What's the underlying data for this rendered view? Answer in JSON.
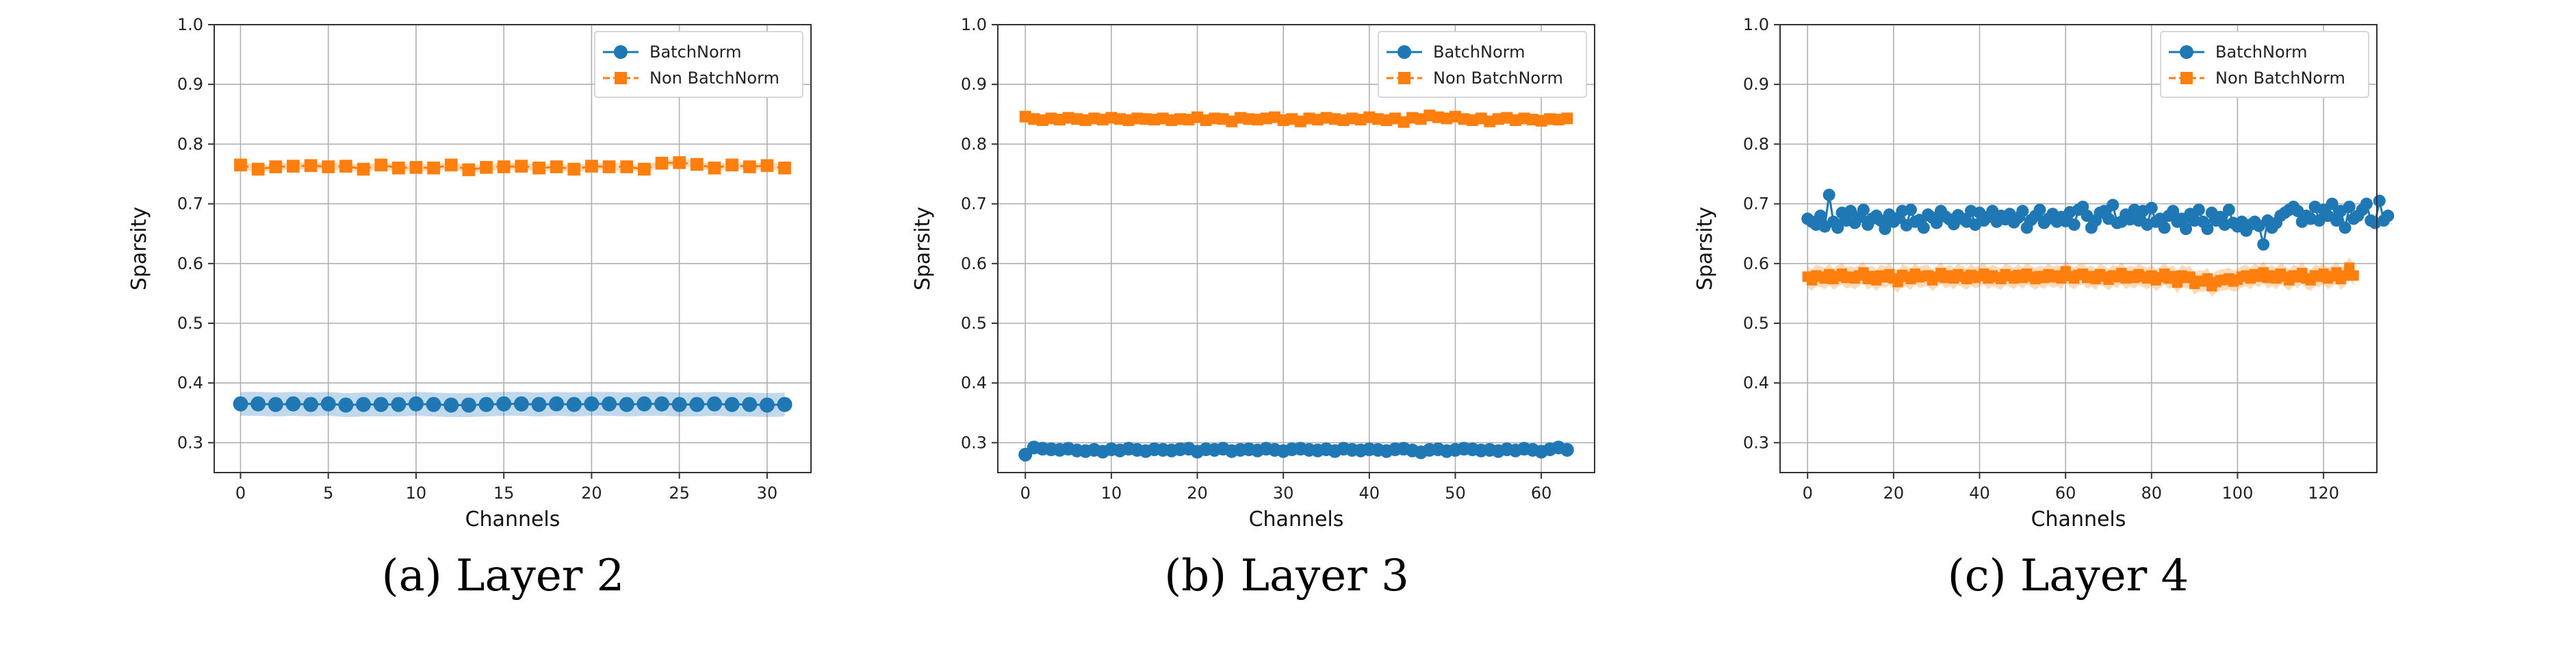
{
  "chart_data": [
    {
      "type": "line",
      "caption": "(a) Layer 2",
      "xlabel": "Channels",
      "ylabel": "Sparsity",
      "xlim": [
        -1.5,
        32.5
      ],
      "ylim": [
        0.25,
        1.0
      ],
      "xticks": [
        0,
        5,
        10,
        15,
        20,
        25,
        30
      ],
      "yticks": [
        0.3,
        0.4,
        0.5,
        0.6,
        0.7,
        0.8,
        0.9,
        1.0
      ],
      "grid": true,
      "legend": "top-right",
      "series": [
        {
          "name": "BatchNorm",
          "color": "#1f77b4",
          "marker": "circle",
          "band": 0.02,
          "values": [
            0.365,
            0.365,
            0.364,
            0.365,
            0.364,
            0.365,
            0.363,
            0.364,
            0.364,
            0.364,
            0.365,
            0.364,
            0.363,
            0.363,
            0.364,
            0.365,
            0.365,
            0.364,
            0.365,
            0.364,
            0.365,
            0.365,
            0.364,
            0.365,
            0.365,
            0.364,
            0.364,
            0.365,
            0.364,
            0.364,
            0.363,
            0.364
          ]
        },
        {
          "name": "Non BatchNorm",
          "color": "#ff7f0e",
          "marker": "square",
          "dash": true,
          "band": 0.006,
          "values": [
            0.765,
            0.758,
            0.762,
            0.763,
            0.764,
            0.762,
            0.763,
            0.758,
            0.765,
            0.76,
            0.761,
            0.76,
            0.765,
            0.757,
            0.761,
            0.762,
            0.763,
            0.76,
            0.762,
            0.758,
            0.763,
            0.762,
            0.762,
            0.758,
            0.768,
            0.769,
            0.766,
            0.76,
            0.765,
            0.762,
            0.764,
            0.76
          ]
        }
      ]
    },
    {
      "type": "line",
      "caption": "(b) Layer 3",
      "xlabel": "Channels",
      "ylabel": "Sparsity",
      "xlim": [
        -3.2,
        66.2
      ],
      "ylim": [
        0.25,
        1.0
      ],
      "xticks": [
        0,
        10,
        20,
        30,
        40,
        50,
        60
      ],
      "yticks": [
        0.3,
        0.4,
        0.5,
        0.6,
        0.7,
        0.8,
        0.9,
        1.0
      ],
      "grid": true,
      "legend": "top-right",
      "series": [
        {
          "name": "BatchNorm",
          "color": "#1f77b4",
          "marker": "circle",
          "band": 0.008,
          "values": [
            0.28,
            0.292,
            0.29,
            0.289,
            0.288,
            0.29,
            0.287,
            0.286,
            0.288,
            0.285,
            0.289,
            0.287,
            0.29,
            0.288,
            0.286,
            0.289,
            0.288,
            0.287,
            0.289,
            0.29,
            0.285,
            0.289,
            0.288,
            0.29,
            0.286,
            0.288,
            0.289,
            0.287,
            0.29,
            0.288,
            0.286,
            0.289,
            0.29,
            0.288,
            0.287,
            0.289,
            0.286,
            0.29,
            0.288,
            0.287,
            0.289,
            0.288,
            0.286,
            0.289,
            0.29,
            0.287,
            0.284,
            0.288,
            0.289,
            0.286,
            0.288,
            0.29,
            0.289,
            0.287,
            0.288,
            0.286,
            0.289,
            0.287,
            0.29,
            0.288,
            0.285,
            0.289,
            0.292,
            0.288
          ]
        },
        {
          "name": "Non BatchNorm",
          "color": "#ff7f0e",
          "marker": "square",
          "dash": true,
          "band": 0.006,
          "values": [
            0.846,
            0.842,
            0.84,
            0.843,
            0.841,
            0.844,
            0.842,
            0.84,
            0.843,
            0.841,
            0.844,
            0.842,
            0.84,
            0.843,
            0.842,
            0.841,
            0.843,
            0.84,
            0.842,
            0.841,
            0.845,
            0.84,
            0.843,
            0.842,
            0.838,
            0.844,
            0.842,
            0.841,
            0.843,
            0.845,
            0.84,
            0.842,
            0.838,
            0.843,
            0.841,
            0.844,
            0.842,
            0.84,
            0.843,
            0.841,
            0.845,
            0.842,
            0.84,
            0.843,
            0.837,
            0.844,
            0.842,
            0.848,
            0.845,
            0.843,
            0.846,
            0.842,
            0.84,
            0.843,
            0.838,
            0.842,
            0.844,
            0.84,
            0.843,
            0.841,
            0.839,
            0.842,
            0.841,
            0.843
          ]
        }
      ]
    },
    {
      "type": "line",
      "caption": "(c) Layer 4",
      "xlabel": "Channels",
      "ylabel": "Sparsity",
      "xlim": [
        -6.4,
        132.4
      ],
      "ylim": [
        0.25,
        1.0
      ],
      "xticks": [
        0,
        20,
        40,
        60,
        80,
        100,
        120
      ],
      "yticks": [
        0.3,
        0.4,
        0.5,
        0.6,
        0.7,
        0.8,
        0.9,
        1.0
      ],
      "grid": true,
      "legend": "top-right",
      "series": [
        {
          "name": "BatchNorm",
          "color": "#1f77b4",
          "marker": "circle",
          "band": 0.004,
          "values": [
            0.675,
            0.67,
            0.665,
            0.68,
            0.662,
            0.715,
            0.67,
            0.66,
            0.685,
            0.672,
            0.688,
            0.668,
            0.678,
            0.69,
            0.665,
            0.675,
            0.68,
            0.672,
            0.658,
            0.682,
            0.67,
            0.676,
            0.688,
            0.664,
            0.69,
            0.67,
            0.673,
            0.66,
            0.682,
            0.677,
            0.668,
            0.688,
            0.679,
            0.674,
            0.666,
            0.681,
            0.675,
            0.67,
            0.688,
            0.665,
            0.685,
            0.672,
            0.678,
            0.688,
            0.67,
            0.68,
            0.674,
            0.683,
            0.669,
            0.677,
            0.688,
            0.66,
            0.673,
            0.68,
            0.69,
            0.668,
            0.675,
            0.683,
            0.67,
            0.678,
            0.671,
            0.686,
            0.665,
            0.69,
            0.695,
            0.68,
            0.66,
            0.672,
            0.685,
            0.688,
            0.675,
            0.698,
            0.668,
            0.67,
            0.682,
            0.674,
            0.69,
            0.672,
            0.688,
            0.665,
            0.693,
            0.67,
            0.675,
            0.66,
            0.68,
            0.688,
            0.67,
            0.675,
            0.658,
            0.683,
            0.672,
            0.69,
            0.67,
            0.658,
            0.685,
            0.672,
            0.678,
            0.665,
            0.69,
            0.668,
            0.662,
            0.67,
            0.655,
            0.665,
            0.67,
            0.663,
            0.632,
            0.672,
            0.66,
            0.668,
            0.68,
            0.685,
            0.69,
            0.695,
            0.688,
            0.67,
            0.68,
            0.675,
            0.695,
            0.672,
            0.69,
            0.68,
            0.7,
            0.672,
            0.688,
            0.66,
            0.695,
            0.675,
            0.68,
            0.69,
            0.7,
            0.672,
            0.668,
            0.705,
            0.672,
            0.68
          ]
        },
        {
          "name": "Non BatchNorm",
          "color": "#ff7f0e",
          "marker": "square",
          "dash": true,
          "band": 0.018,
          "values": [
            0.578,
            0.572,
            0.58,
            0.578,
            0.575,
            0.582,
            0.574,
            0.579,
            0.583,
            0.576,
            0.578,
            0.575,
            0.58,
            0.585,
            0.574,
            0.579,
            0.572,
            0.58,
            0.577,
            0.582,
            0.575,
            0.569,
            0.581,
            0.578,
            0.574,
            0.583,
            0.577,
            0.579,
            0.58,
            0.572,
            0.578,
            0.584,
            0.576,
            0.58,
            0.575,
            0.582,
            0.578,
            0.574,
            0.581,
            0.576,
            0.579,
            0.583,
            0.575,
            0.58,
            0.577,
            0.574,
            0.582,
            0.579,
            0.575,
            0.581,
            0.576,
            0.583,
            0.578,
            0.574,
            0.579,
            0.576,
            0.582,
            0.577,
            0.58,
            0.575,
            0.587,
            0.579,
            0.575,
            0.581,
            0.583,
            0.576,
            0.579,
            0.574,
            0.582,
            0.578,
            0.573,
            0.58,
            0.577,
            0.584,
            0.575,
            0.579,
            0.576,
            0.582,
            0.578,
            0.575,
            0.58,
            0.572,
            0.577,
            0.583,
            0.575,
            0.579,
            0.568,
            0.58,
            0.576,
            0.578,
            0.566,
            0.571,
            0.57,
            0.575,
            0.562,
            0.569,
            0.572,
            0.573,
            0.575,
            0.57,
            0.573,
            0.578,
            0.58,
            0.575,
            0.582,
            0.578,
            0.585,
            0.576,
            0.58,
            0.575,
            0.583,
            0.578,
            0.572,
            0.58,
            0.577,
            0.584,
            0.575,
            0.572,
            0.58,
            0.578,
            0.583,
            0.575,
            0.579,
            0.585,
            0.574,
            0.58,
            0.593,
            0.58
          ]
        }
      ]
    }
  ]
}
